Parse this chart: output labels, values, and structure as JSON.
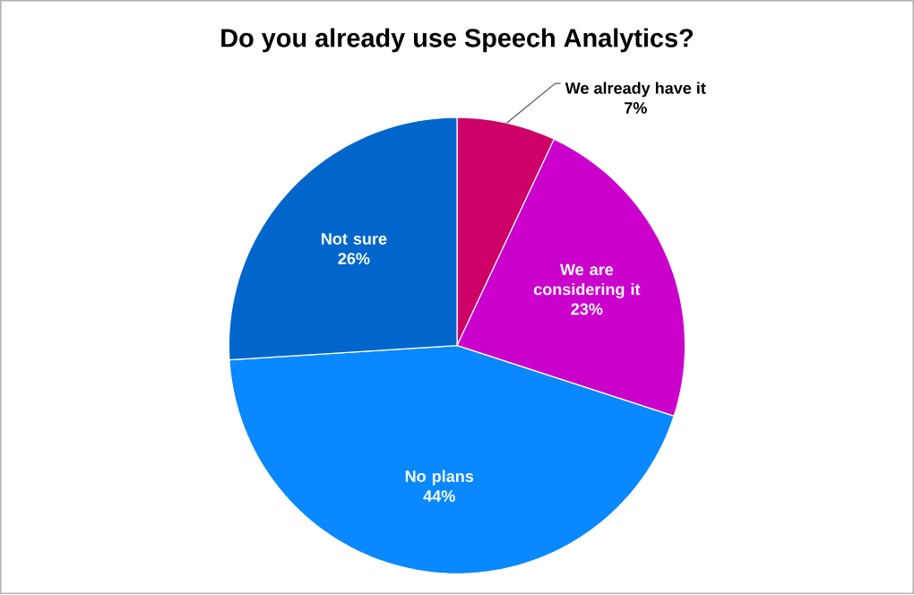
{
  "chart_data": {
    "type": "pie",
    "title": "Do you already use Speech Analytics?",
    "categories": [
      "We already have it",
      "We are considering it",
      "No plans",
      "Not sure"
    ],
    "values": [
      7,
      23,
      44,
      26
    ],
    "value_labels": [
      "7%",
      "23%",
      "44%",
      "26%"
    ],
    "colors": [
      "#cc0066",
      "#cc00cc",
      "#0a88ff",
      "#0066cc"
    ]
  }
}
